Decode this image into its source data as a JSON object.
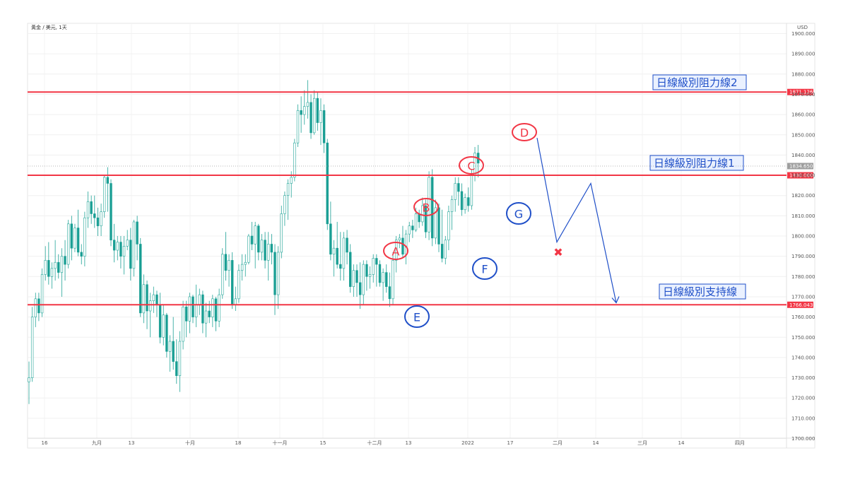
{
  "chart": {
    "symbol_label": "黃金 / 美元, 1天",
    "currency": "USD",
    "last_price_label": "1834.650",
    "colors": {
      "up": "#26a69a",
      "down": "#1a9f94",
      "level": "#f23645",
      "annotation": "#1f4fc8",
      "marker_red": "#f23645"
    }
  },
  "chart_data": {
    "type": "candlestick",
    "y_axis": {
      "ticks": [
        "1900.000",
        "1890.000",
        "1880.000",
        "1870.000",
        "1860.000",
        "1850.000",
        "1840.000",
        "1830.000",
        "1820.000",
        "1810.000",
        "1800.000",
        "1790.000",
        "1780.000",
        "1770.000",
        "1760.000",
        "1750.000",
        "1740.000",
        "1730.000",
        "1720.000",
        "1710.000",
        "1700.000"
      ],
      "ylim": [
        1700,
        1900
      ]
    },
    "x_axis": {
      "ticks": [
        "16",
        "九月",
        "13",
        "十月",
        "18",
        "十一月",
        "15",
        "十二月",
        "13",
        "2022",
        "17",
        "二月",
        "14",
        "三月",
        "14",
        "四月"
      ]
    },
    "levels": [
      {
        "name": "日線級別阻力線2",
        "value": 1871.126,
        "tag": "1871.126"
      },
      {
        "name": "日線級別阻力線1",
        "value": 1830.0,
        "tag": "1830.000"
      },
      {
        "name": "日線級別支持線",
        "value": 1766.043,
        "tag": "1766.043"
      }
    ],
    "points": [
      {
        "label": "A",
        "color": "red"
      },
      {
        "label": "B",
        "color": "red"
      },
      {
        "label": "C",
        "color": "red"
      },
      {
        "label": "D",
        "color": "red"
      },
      {
        "label": "E",
        "color": "blue"
      },
      {
        "label": "F",
        "color": "blue"
      },
      {
        "label": "G",
        "color": "blue"
      }
    ],
    "forecast_path": [
      1834.5,
      1797,
      1826,
      1767
    ],
    "forecast_marker": "✖",
    "candles": [
      [
        1728,
        1738,
        1717,
        1730
      ],
      [
        1730,
        1765,
        1728,
        1760
      ],
      [
        1760,
        1772,
        1755,
        1769
      ],
      [
        1769,
        1772,
        1758,
        1762
      ],
      [
        1762,
        1784,
        1760,
        1781
      ],
      [
        1781,
        1795,
        1778,
        1788
      ],
      [
        1788,
        1797,
        1776,
        1780
      ],
      [
        1780,
        1787,
        1774,
        1784
      ],
      [
        1784,
        1798,
        1778,
        1787
      ],
      [
        1787,
        1791,
        1779,
        1782
      ],
      [
        1782,
        1794,
        1770,
        1790
      ],
      [
        1790,
        1798,
        1778,
        1786
      ],
      [
        1786,
        1808,
        1784,
        1806
      ],
      [
        1806,
        1810,
        1788,
        1794
      ],
      [
        1794,
        1806,
        1792,
        1804
      ],
      [
        1804,
        1813,
        1790,
        1792
      ],
      [
        1792,
        1796,
        1786,
        1790
      ],
      [
        1790,
        1812,
        1785,
        1809
      ],
      [
        1809,
        1822,
        1804,
        1817
      ],
      [
        1817,
        1820,
        1806,
        1811
      ],
      [
        1811,
        1820,
        1804,
        1809
      ],
      [
        1809,
        1814,
        1800,
        1805
      ],
      [
        1805,
        1816,
        1800,
        1812
      ],
      [
        1812,
        1830,
        1809,
        1829
      ],
      [
        1829,
        1834,
        1812,
        1826
      ],
      [
        1826,
        1828,
        1795,
        1798
      ],
      [
        1798,
        1806,
        1787,
        1793
      ],
      [
        1793,
        1800,
        1788,
        1797
      ],
      [
        1797,
        1800,
        1784,
        1790
      ],
      [
        1790,
        1800,
        1781,
        1795
      ],
      [
        1795,
        1803,
        1793,
        1798
      ],
      [
        1798,
        1804,
        1778,
        1784
      ],
      [
        1784,
        1808,
        1780,
        1807
      ],
      [
        1807,
        1810,
        1788,
        1796
      ],
      [
        1796,
        1799,
        1760,
        1762
      ],
      [
        1762,
        1781,
        1757,
        1776
      ],
      [
        1776,
        1778,
        1754,
        1763
      ],
      [
        1763,
        1772,
        1750,
        1768
      ],
      [
        1768,
        1775,
        1762,
        1771
      ],
      [
        1771,
        1773,
        1760,
        1766
      ],
      [
        1766,
        1772,
        1747,
        1750
      ],
      [
        1750,
        1766,
        1746,
        1761
      ],
      [
        1761,
        1762,
        1740,
        1743
      ],
      [
        1743,
        1751,
        1733,
        1748
      ],
      [
        1748,
        1760,
        1734,
        1738
      ],
      [
        1738,
        1749,
        1727,
        1731
      ],
      [
        1731,
        1753,
        1723,
        1748
      ],
      [
        1748,
        1768,
        1744,
        1765
      ],
      [
        1765,
        1768,
        1750,
        1758
      ],
      [
        1758,
        1772,
        1752,
        1770
      ],
      [
        1770,
        1771,
        1757,
        1760
      ],
      [
        1760,
        1776,
        1755,
        1766
      ],
      [
        1766,
        1774,
        1761,
        1771
      ],
      [
        1771,
        1773,
        1752,
        1757
      ],
      [
        1757,
        1767,
        1750,
        1763
      ],
      [
        1763,
        1768,
        1757,
        1760
      ],
      [
        1760,
        1771,
        1755,
        1769
      ],
      [
        1769,
        1770,
        1753,
        1758
      ],
      [
        1758,
        1774,
        1755,
        1771
      ],
      [
        1771,
        1794,
        1769,
        1791
      ],
      [
        1791,
        1802,
        1778,
        1783
      ],
      [
        1783,
        1791,
        1775,
        1788
      ],
      [
        1788,
        1792,
        1764,
        1766
      ],
      [
        1766,
        1775,
        1763,
        1769
      ],
      [
        1769,
        1786,
        1767,
        1783
      ],
      [
        1783,
        1791,
        1778,
        1786
      ],
      [
        1786,
        1791,
        1780,
        1787
      ],
      [
        1787,
        1801,
        1786,
        1800
      ],
      [
        1800,
        1807,
        1793,
        1796
      ],
      [
        1796,
        1807,
        1784,
        1805
      ],
      [
        1805,
        1806,
        1788,
        1792
      ],
      [
        1792,
        1801,
        1788,
        1798
      ],
      [
        1798,
        1802,
        1784,
        1788
      ],
      [
        1788,
        1802,
        1778,
        1796
      ],
      [
        1796,
        1801,
        1786,
        1792
      ],
      [
        1792,
        1796,
        1761,
        1771
      ],
      [
        1771,
        1795,
        1764,
        1792
      ],
      [
        1792,
        1815,
        1789,
        1811
      ],
      [
        1811,
        1822,
        1805,
        1820
      ],
      [
        1820,
        1828,
        1808,
        1826
      ],
      [
        1826,
        1832,
        1819,
        1829
      ],
      [
        1829,
        1848,
        1827,
        1846
      ],
      [
        1846,
        1865,
        1844,
        1862
      ],
      [
        1862,
        1869,
        1851,
        1860
      ],
      [
        1860,
        1872,
        1855,
        1864
      ],
      [
        1864,
        1877,
        1858,
        1866
      ],
      [
        1866,
        1870,
        1848,
        1851
      ],
      [
        1851,
        1872,
        1850,
        1868
      ],
      [
        1868,
        1871,
        1852,
        1856
      ],
      [
        1856,
        1868,
        1845,
        1862
      ],
      [
        1862,
        1865,
        1841,
        1846
      ],
      [
        1846,
        1848,
        1803,
        1806
      ],
      [
        1806,
        1817,
        1788,
        1791
      ],
      [
        1791,
        1798,
        1780,
        1794
      ],
      [
        1794,
        1807,
        1784,
        1786
      ],
      [
        1786,
        1802,
        1778,
        1784
      ],
      [
        1784,
        1802,
        1778,
        1799
      ],
      [
        1799,
        1803,
        1786,
        1792
      ],
      [
        1792,
        1796,
        1772,
        1775
      ],
      [
        1775,
        1786,
        1770,
        1783
      ],
      [
        1783,
        1786,
        1770,
        1777
      ],
      [
        1777,
        1787,
        1764,
        1771
      ],
      [
        1771,
        1788,
        1766,
        1786
      ],
      [
        1786,
        1788,
        1773,
        1780
      ],
      [
        1780,
        1785,
        1774,
        1781
      ],
      [
        1781,
        1791,
        1777,
        1789
      ],
      [
        1789,
        1791,
        1775,
        1786
      ],
      [
        1786,
        1788,
        1775,
        1777
      ],
      [
        1777,
        1784,
        1768,
        1782
      ],
      [
        1782,
        1786,
        1772,
        1775
      ],
      [
        1775,
        1782,
        1765,
        1769
      ],
      [
        1769,
        1792,
        1766,
        1788
      ],
      [
        1788,
        1800,
        1782,
        1798
      ],
      [
        1798,
        1801,
        1794,
        1799
      ],
      [
        1799,
        1805,
        1789,
        1791
      ],
      [
        1791,
        1803,
        1786,
        1801
      ],
      [
        1801,
        1807,
        1797,
        1805
      ],
      [
        1805,
        1808,
        1799,
        1803
      ],
      [
        1803,
        1814,
        1802,
        1811
      ],
      [
        1811,
        1813,
        1804,
        1807
      ],
      [
        1807,
        1819,
        1805,
        1815
      ],
      [
        1815,
        1818,
        1799,
        1802
      ],
      [
        1802,
        1832,
        1798,
        1829
      ],
      [
        1829,
        1833,
        1795,
        1799
      ],
      [
        1799,
        1818,
        1796,
        1814
      ],
      [
        1814,
        1816,
        1792,
        1796
      ],
      [
        1796,
        1813,
        1787,
        1789
      ],
      [
        1789,
        1800,
        1786,
        1798
      ],
      [
        1798,
        1815,
        1793,
        1812
      ],
      [
        1812,
        1820,
        1803,
        1818
      ],
      [
        1818,
        1829,
        1812,
        1826
      ],
      [
        1826,
        1829,
        1815,
        1822
      ],
      [
        1822,
        1826,
        1810,
        1813
      ],
      [
        1813,
        1821,
        1811,
        1819
      ],
      [
        1819,
        1824,
        1812,
        1815
      ],
      [
        1815,
        1833,
        1813,
        1830
      ],
      [
        1830,
        1844,
        1827,
        1841
      ],
      [
        1841,
        1845,
        1829,
        1836
      ]
    ]
  }
}
